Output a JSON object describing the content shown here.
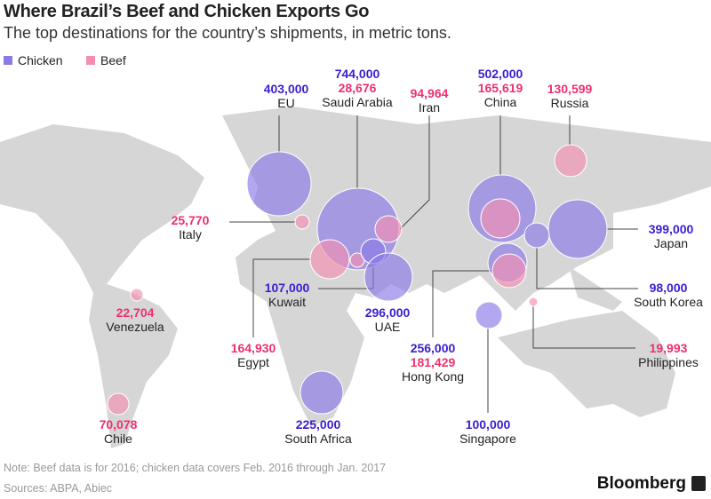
{
  "title": "Where Brazil’s Beef and Chicken Exports Go",
  "subtitle": "The top destinations for the country’s shipments, in metric tons.",
  "legend": [
    {
      "label": "Chicken",
      "color": "#8a7ae6"
    },
    {
      "label": "Beef",
      "color": "#f58fb1"
    }
  ],
  "colors": {
    "chicken_label": "#3a1fd1",
    "beef_label": "#f0306e",
    "land": "#d6d6d6"
  },
  "destinations": [
    {
      "name": "EU",
      "chicken": "403,000",
      "beef": null
    },
    {
      "name": "Saudi Arabia",
      "chicken": "744,000",
      "beef": "28,676"
    },
    {
      "name": "Iran",
      "chicken": null,
      "beef": "94,964"
    },
    {
      "name": "China",
      "chicken": "502,000",
      "beef": "165,619"
    },
    {
      "name": "Russia",
      "chicken": null,
      "beef": "130,599"
    },
    {
      "name": "Italy",
      "chicken": null,
      "beef": "25,770"
    },
    {
      "name": "Japan",
      "chicken": "399,000",
      "beef": null
    },
    {
      "name": "Kuwait",
      "chicken": "107,000",
      "beef": null
    },
    {
      "name": "UAE",
      "chicken": "296,000",
      "beef": null
    },
    {
      "name": "South Korea",
      "chicken": "98,000",
      "beef": null
    },
    {
      "name": "Venezuela",
      "chicken": null,
      "beef": "22,704"
    },
    {
      "name": "Egypt",
      "chicken": null,
      "beef": "164,930"
    },
    {
      "name": "Hong Kong",
      "chicken": "256,000",
      "beef": "181,429"
    },
    {
      "name": "Philippines",
      "chicken": null,
      "beef": "19,993"
    },
    {
      "name": "Chile",
      "chicken": null,
      "beef": "70,078"
    },
    {
      "name": "South Africa",
      "chicken": "225,000",
      "beef": null
    },
    {
      "name": "Singapore",
      "chicken": "100,000",
      "beef": null
    }
  ],
  "note": "Note: Beef data is for 2016; chicken data covers Feb. 2016 through Jan. 2017",
  "sources": "Sources: ABPA, Abiec",
  "logo": "Bloomberg"
}
